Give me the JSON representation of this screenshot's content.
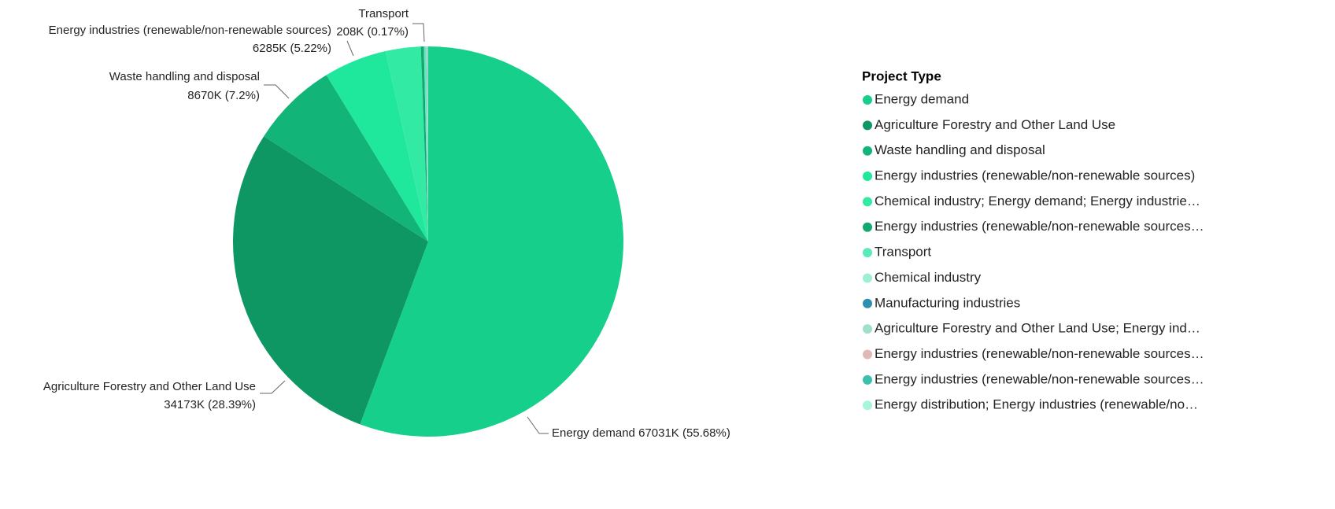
{
  "chart_data": {
    "type": "pie",
    "legend_title": "Project Type",
    "categories": [
      "Energy demand",
      "Agriculture Forestry and Other Land Use",
      "Waste handling and disposal",
      "Energy industries (renewable/non-renewable sources)",
      "Chemical industry; Energy demand; Energy industrie…",
      "Energy industries (renewable/non-renewable sources…",
      "Transport",
      "Chemical industry",
      "Manufacturing industries",
      "Agriculture Forestry and Other Land Use; Energy ind…",
      "Energy industries (renewable/non-renewable sources…",
      "Energy industries (renewable/non-renewable sources…",
      "Energy distribution; Energy industries (renewable/no…"
    ],
    "values": [
      67031,
      34173,
      8670,
      6285,
      3500,
      300,
      208,
      80,
      50,
      30,
      25,
      20,
      16
    ],
    "value_labels": [
      "67031K (55.68%)",
      "34173K (28.39%)",
      "8670K (7.2%)",
      "6285K (5.22%)",
      null,
      null,
      "208K (0.17%)",
      null,
      null,
      null,
      null,
      null,
      null
    ],
    "colors": [
      "#16cf8a",
      "#0e9663",
      "#12b577",
      "#1fe89d",
      "#33eaa4",
      "#13a870",
      "#5ceab9",
      "#9ef0d0",
      "#2e8fb0",
      "#a0e0c8",
      "#e0b8b8",
      "#3dbfb0",
      "#a8f5d8"
    ],
    "legend_position": "right"
  }
}
